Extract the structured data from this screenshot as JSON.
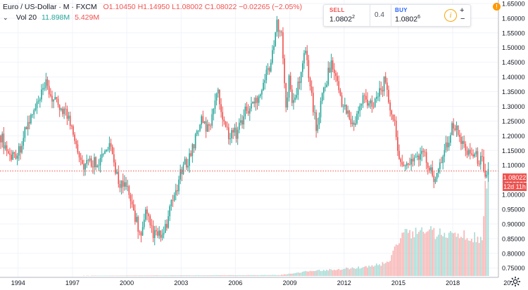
{
  "header": {
    "symbol": "Euro / US-Dollar · M · FXCM",
    "open": "O1.10450",
    "high": "H1.14950",
    "low": "L1.08002",
    "close": "C1.08022",
    "change": "−0.02265 (−2.05%)"
  },
  "volume_header": {
    "label": "Vol 20",
    "value1": "11.898M",
    "value2": "5.429M"
  },
  "trade_panel": {
    "sell_label": "SELL",
    "sell_price": "1.0802",
    "sell_sup": "2",
    "spread": "0.4",
    "buy_label": "BUY",
    "buy_price": "1.0802",
    "buy_sup": "6",
    "info": "i",
    "plus": "+",
    "minus": "−"
  },
  "alert_badge": "!",
  "last_price_label": "1.08022",
  "countdown_label": "12d 11h",
  "colors": {
    "up": "#26a69a",
    "down": "#ef5350",
    "vol_up": "#a7dbd5",
    "vol_down": "#f7b4b3",
    "grid": "#f0f3fa",
    "text": "#131722"
  },
  "chart_data": {
    "type": "candlestick",
    "title": "Euro / US-Dollar · M · FXCM",
    "xlabel": "",
    "ylabel": "",
    "x_ticks": [
      "1994",
      "1997",
      "2000",
      "2003",
      "2006",
      "2009",
      "2012",
      "2015",
      "2018",
      "20"
    ],
    "y_ticks": [
      "1.65000",
      "1.60000",
      "1.55000",
      "1.50000",
      "1.45000",
      "1.40000",
      "1.35000",
      "1.30000",
      "1.25000",
      "1.20000",
      "1.15000",
      "1.10000",
      "1.05000",
      "1.00000",
      "0.95000",
      "0.90000",
      "0.85000",
      "0.80000",
      "0.75000"
    ],
    "ylim": [
      0.75,
      1.66
    ],
    "grid": true,
    "last_price": 1.08022,
    "close_path": [
      [
        "1993-01",
        1.2
      ],
      [
        "1993-07",
        1.13
      ],
      [
        "1994-01",
        1.15
      ],
      [
        "1994-07",
        1.24
      ],
      [
        "1995-01",
        1.3
      ],
      [
        "1995-07",
        1.37
      ],
      [
        "1996-01",
        1.31
      ],
      [
        "1996-07",
        1.29
      ],
      [
        "1997-01",
        1.22
      ],
      [
        "1997-07",
        1.1
      ],
      [
        "1998-01",
        1.11
      ],
      [
        "1998-07",
        1.12
      ],
      [
        "1999-01",
        1.16
      ],
      [
        "1999-07",
        1.05
      ],
      [
        "2000-01",
        1.01
      ],
      [
        "2000-07",
        0.91
      ],
      [
        "2000-10",
        0.85
      ],
      [
        "2001-01",
        0.93
      ],
      [
        "2001-07",
        0.86
      ],
      [
        "2002-01",
        0.86
      ],
      [
        "2002-07",
        0.98
      ],
      [
        "2003-01",
        1.08
      ],
      [
        "2003-07",
        1.14
      ],
      [
        "2004-01",
        1.25
      ],
      [
        "2004-07",
        1.22
      ],
      [
        "2004-12",
        1.36
      ],
      [
        "2005-07",
        1.21
      ],
      [
        "2006-01",
        1.21
      ],
      [
        "2006-07",
        1.28
      ],
      [
        "2007-01",
        1.31
      ],
      [
        "2007-07",
        1.38
      ],
      [
        "2008-01",
        1.47
      ],
      [
        "2008-04",
        1.58
      ],
      [
        "2008-07",
        1.57
      ],
      [
        "2008-10",
        1.28
      ],
      [
        "2008-12",
        1.39
      ],
      [
        "2009-03",
        1.3
      ],
      [
        "2009-11",
        1.49
      ],
      [
        "2010-06",
        1.22
      ],
      [
        "2010-11",
        1.36
      ],
      [
        "2011-04",
        1.45
      ],
      [
        "2011-12",
        1.3
      ],
      [
        "2012-07",
        1.23
      ],
      [
        "2013-01",
        1.33
      ],
      [
        "2013-07",
        1.31
      ],
      [
        "2014-03",
        1.38
      ],
      [
        "2014-09",
        1.26
      ],
      [
        "2015-03",
        1.08
      ],
      [
        "2015-09",
        1.12
      ],
      [
        "2016-05",
        1.14
      ],
      [
        "2016-12",
        1.05
      ],
      [
        "2017-06",
        1.14
      ],
      [
        "2018-01",
        1.24
      ],
      [
        "2018-07",
        1.17
      ],
      [
        "2019-01",
        1.14
      ],
      [
        "2019-08",
        1.11
      ],
      [
        "2019-10",
        1.08
      ]
    ],
    "volume_path": [
      [
        "1993-01",
        0
      ],
      [
        "2008-06",
        0.01
      ],
      [
        "2010-01",
        0.05
      ],
      [
        "2013-01",
        0.09
      ],
      [
        "2014-06",
        0.14
      ],
      [
        "2015-03",
        0.46
      ],
      [
        "2016-06",
        0.47
      ],
      [
        "2017-06",
        0.43
      ],
      [
        "2018-06",
        0.44
      ],
      [
        "2019-08",
        0.38
      ],
      [
        "2019-10",
        1.0
      ]
    ]
  }
}
